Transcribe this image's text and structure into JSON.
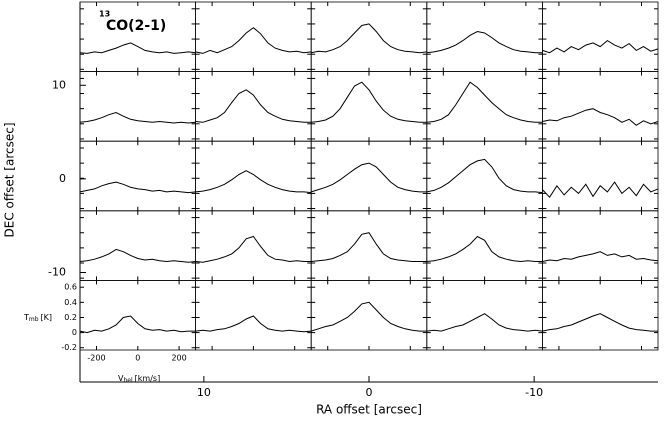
{
  "chart_data": {
    "type": "line",
    "title": {
      "superscript": "13",
      "text": "CO(2-1)"
    },
    "x_label": "RA offset [arcsec]",
    "y_label": "DEC offset [arcsec]",
    "xlim": [
      17.5,
      -17.5
    ],
    "xticks": [
      10,
      0,
      -10
    ],
    "ylim": [
      18.9,
      -21.7
    ],
    "yticks": [
      10,
      0,
      -10
    ],
    "color": "#000000",
    "panel": {
      "x_label": {
        "symbol": "V",
        "subscript": "hel",
        "unit": "[km/s]"
      },
      "y_label": {
        "symbol": "T",
        "subscript": "mb",
        "unit": "[K]"
      },
      "xlim": [
        -280,
        280
      ],
      "xticks": [
        -200,
        0,
        200
      ],
      "ylim": [
        -0.23,
        0.69
      ],
      "yticks": [
        0.6,
        0.4,
        0.2,
        0,
        -0.2
      ]
    },
    "velocity": [
      -280,
      -245,
      -210,
      -175,
      -140,
      -105,
      -70,
      -35,
      0,
      35,
      70,
      105,
      140,
      175,
      210,
      245,
      280
    ],
    "spectra": [
      [
        [
          0.02,
          0.01,
          0.03,
          0.02,
          0.05,
          0.08,
          0.12,
          0.15,
          0.1,
          0.05,
          0.03,
          0.02,
          0.03,
          0.01,
          0.02,
          0.03,
          0.02
        ],
        [
          0.03,
          0.01,
          0.05,
          0.02,
          0.06,
          0.1,
          0.18,
          0.28,
          0.35,
          0.27,
          0.15,
          0.08,
          0.05,
          0.03,
          0.04,
          0.02,
          0.03
        ],
        [
          0.02,
          0.04,
          0.03,
          0.06,
          0.1,
          0.18,
          0.28,
          0.38,
          0.4,
          0.3,
          0.18,
          0.1,
          0.06,
          0.04,
          0.03,
          0.02,
          0.03
        ],
        [
          0.02,
          0.03,
          0.05,
          0.08,
          0.12,
          0.18,
          0.25,
          0.3,
          0.28,
          0.22,
          0.15,
          0.1,
          0.06,
          0.04,
          0.03,
          0.02,
          0.02
        ],
        [
          0.05,
          0.02,
          0.08,
          0.03,
          0.1,
          0.06,
          0.12,
          0.15,
          0.1,
          0.18,
          0.12,
          0.08,
          0.14,
          0.05,
          0.1,
          0.04,
          0.07
        ]
      ],
      [
        [
          0.02,
          0.03,
          0.05,
          0.08,
          0.12,
          0.15,
          0.1,
          0.06,
          0.04,
          0.03,
          0.02,
          0.03,
          0.02,
          0.01,
          0.02,
          0.01,
          0.02
        ],
        [
          0.03,
          0.02,
          0.05,
          0.08,
          0.15,
          0.28,
          0.4,
          0.45,
          0.38,
          0.25,
          0.15,
          0.1,
          0.06,
          0.04,
          0.03,
          0.02,
          0.02
        ],
        [
          0.02,
          0.03,
          0.05,
          0.1,
          0.2,
          0.35,
          0.5,
          0.55,
          0.45,
          0.3,
          0.18,
          0.1,
          0.06,
          0.04,
          0.03,
          0.02,
          0.02
        ],
        [
          0.02,
          0.03,
          0.06,
          0.12,
          0.25,
          0.4,
          0.55,
          0.48,
          0.38,
          0.28,
          0.2,
          0.12,
          0.08,
          0.05,
          0.03,
          0.02,
          0.02
        ],
        [
          0.03,
          0.05,
          0.04,
          0.08,
          0.1,
          0.14,
          0.18,
          0.2,
          0.15,
          0.12,
          0.08,
          0.02,
          0.06,
          -0.02,
          0.04,
          0.0,
          0.03
        ]
      ],
      [
        [
          0.02,
          0.04,
          0.06,
          0.1,
          0.13,
          0.15,
          0.12,
          0.08,
          0.06,
          0.05,
          0.03,
          0.04,
          0.02,
          0.03,
          0.02,
          0.01,
          0.02
        ],
        [
          0.02,
          0.03,
          0.05,
          0.08,
          0.12,
          0.18,
          0.25,
          0.3,
          0.25,
          0.18,
          0.12,
          0.08,
          0.05,
          0.03,
          0.02,
          0.02,
          0.01
        ],
        [
          0.02,
          0.05,
          0.08,
          0.12,
          0.18,
          0.25,
          0.32,
          0.38,
          0.4,
          0.35,
          0.25,
          0.15,
          0.08,
          0.05,
          0.03,
          0.02,
          0.02
        ],
        [
          0.02,
          0.04,
          0.08,
          0.14,
          0.22,
          0.3,
          0.38,
          0.43,
          0.45,
          0.35,
          0.2,
          0.1,
          0.05,
          0.03,
          0.02,
          0.02,
          0.01
        ],
        [
          0.05,
          -0.05,
          0.1,
          -0.02,
          0.08,
          0.0,
          0.12,
          -0.04,
          0.1,
          0.02,
          0.15,
          0.0,
          0.08,
          -0.03,
          0.12,
          0.02,
          0.06
        ]
      ],
      [
        [
          0.02,
          0.03,
          0.05,
          0.08,
          0.12,
          0.18,
          0.15,
          0.1,
          0.06,
          0.04,
          0.05,
          0.03,
          0.02,
          0.03,
          0.02,
          0.01,
          0.02
        ],
        [
          0.02,
          0.01,
          0.03,
          0.05,
          0.08,
          0.12,
          0.2,
          0.32,
          0.35,
          0.22,
          0.1,
          0.05,
          0.04,
          0.02,
          0.03,
          0.02,
          0.02
        ],
        [
          0.02,
          0.03,
          0.04,
          0.06,
          0.1,
          0.15,
          0.25,
          0.38,
          0.4,
          0.25,
          0.12,
          0.06,
          0.04,
          0.03,
          0.02,
          0.02,
          0.02
        ],
        [
          0.02,
          0.03,
          0.05,
          0.08,
          0.12,
          0.18,
          0.25,
          0.35,
          0.3,
          0.15,
          0.08,
          0.05,
          0.03,
          0.02,
          0.03,
          0.02,
          0.02
        ],
        [
          0.02,
          0.04,
          0.03,
          0.06,
          0.05,
          0.08,
          0.1,
          0.12,
          0.15,
          0.1,
          0.12,
          0.08,
          0.1,
          0.05,
          0.06,
          0.04,
          0.03
        ]
      ],
      [
        [
          0.02,
          0.0,
          0.03,
          0.02,
          0.05,
          0.1,
          0.2,
          0.22,
          0.12,
          0.05,
          0.03,
          0.04,
          0.02,
          0.03,
          0.01,
          0.02,
          0.02
        ],
        [
          0.02,
          0.03,
          0.02,
          0.04,
          0.05,
          0.08,
          0.12,
          0.18,
          0.22,
          0.12,
          0.05,
          0.03,
          0.02,
          0.03,
          0.02,
          0.01,
          0.02
        ],
        [
          0.02,
          0.05,
          0.08,
          0.1,
          0.15,
          0.2,
          0.28,
          0.38,
          0.4,
          0.3,
          0.2,
          0.12,
          0.08,
          0.05,
          0.03,
          0.02,
          0.02
        ],
        [
          0.02,
          0.03,
          0.02,
          0.05,
          0.08,
          0.1,
          0.15,
          0.2,
          0.25,
          0.18,
          0.1,
          0.06,
          0.04,
          0.03,
          0.02,
          0.03,
          0.02
        ],
        [
          0.02,
          0.04,
          0.05,
          0.08,
          0.1,
          0.14,
          0.18,
          0.22,
          0.25,
          0.2,
          0.15,
          0.1,
          0.06,
          0.04,
          0.03,
          0.02,
          0.02
        ]
      ]
    ]
  }
}
